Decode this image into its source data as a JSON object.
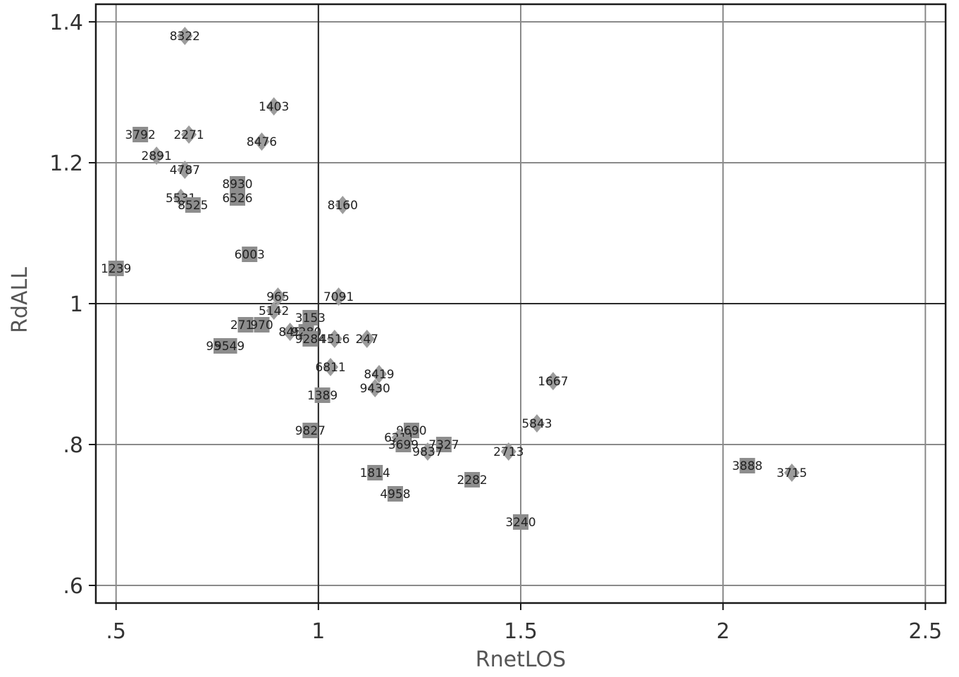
{
  "chart_data": {
    "type": "scatter",
    "xlabel": "RnetLOS",
    "ylabel": "RdALL",
    "xlim": [
      0.45,
      2.55
    ],
    "ylim": [
      0.575,
      1.425
    ],
    "xticks": [
      0.5,
      1,
      1.5,
      2,
      2.5
    ],
    "xtick_labels": [
      ".5",
      "1",
      "1.5",
      "2",
      "2.5"
    ],
    "yticks": [
      0.6,
      0.8,
      1.0,
      1.2,
      1.4
    ],
    "ytick_labels": [
      ".6",
      ".8",
      "1",
      "1.2",
      "1.4"
    ],
    "reference_lines": {
      "x": 1,
      "y": 1
    },
    "grid": true,
    "points": [
      {
        "label": "8322",
        "x": 0.67,
        "y": 1.38,
        "marker": "diamond"
      },
      {
        "label": "1403",
        "x": 0.89,
        "y": 1.28,
        "marker": "diamond"
      },
      {
        "label": "3792",
        "x": 0.56,
        "y": 1.24,
        "marker": "square"
      },
      {
        "label": "2271",
        "x": 0.68,
        "y": 1.24,
        "marker": "diamond"
      },
      {
        "label": "8476",
        "x": 0.86,
        "y": 1.23,
        "marker": "diamond"
      },
      {
        "label": "2891",
        "x": 0.6,
        "y": 1.21,
        "marker": "diamond"
      },
      {
        "label": "4787",
        "x": 0.67,
        "y": 1.19,
        "marker": "diamond"
      },
      {
        "label": "8930",
        "x": 0.8,
        "y": 1.17,
        "marker": "square"
      },
      {
        "label": "6526",
        "x": 0.8,
        "y": 1.15,
        "marker": "square"
      },
      {
        "label": "5531",
        "x": 0.66,
        "y": 1.15,
        "marker": "diamond"
      },
      {
        "label": "8525",
        "x": 0.69,
        "y": 1.14,
        "marker": "square"
      },
      {
        "label": "8160",
        "x": 1.06,
        "y": 1.14,
        "marker": "diamond"
      },
      {
        "label": "6003",
        "x": 0.83,
        "y": 1.07,
        "marker": "square"
      },
      {
        "label": "1239",
        "x": 0.5,
        "y": 1.05,
        "marker": "square"
      },
      {
        "label": "965",
        "x": 0.9,
        "y": 1.01,
        "marker": "diamond"
      },
      {
        "label": "7091",
        "x": 1.05,
        "y": 1.01,
        "marker": "diamond"
      },
      {
        "label": "5142",
        "x": 0.89,
        "y": 0.99,
        "marker": "diamond"
      },
      {
        "label": "3153",
        "x": 0.98,
        "y": 0.98,
        "marker": "square"
      },
      {
        "label": "2712",
        "x": 0.82,
        "y": 0.97,
        "marker": "square"
      },
      {
        "label": "970",
        "x": 0.86,
        "y": 0.97,
        "marker": "square"
      },
      {
        "label": "845",
        "x": 0.93,
        "y": 0.96,
        "marker": "diamond"
      },
      {
        "label": "9280",
        "x": 0.97,
        "y": 0.96,
        "marker": "square"
      },
      {
        "label": "9284",
        "x": 0.98,
        "y": 0.95,
        "marker": "square"
      },
      {
        "label": "4516",
        "x": 1.04,
        "y": 0.95,
        "marker": "diamond"
      },
      {
        "label": "247",
        "x": 1.12,
        "y": 0.95,
        "marker": "diamond"
      },
      {
        "label": "9542",
        "x": 0.76,
        "y": 0.94,
        "marker": "square"
      },
      {
        "label": "9549",
        "x": 0.78,
        "y": 0.94,
        "marker": "square"
      },
      {
        "label": "6811",
        "x": 1.03,
        "y": 0.91,
        "marker": "diamond"
      },
      {
        "label": "8419",
        "x": 1.15,
        "y": 0.9,
        "marker": "diamond"
      },
      {
        "label": "1667",
        "x": 1.58,
        "y": 0.89,
        "marker": "diamond"
      },
      {
        "label": "9430",
        "x": 1.14,
        "y": 0.88,
        "marker": "diamond"
      },
      {
        "label": "1389",
        "x": 1.01,
        "y": 0.87,
        "marker": "square"
      },
      {
        "label": "5843",
        "x": 1.54,
        "y": 0.83,
        "marker": "diamond"
      },
      {
        "label": "9827",
        "x": 0.98,
        "y": 0.82,
        "marker": "square"
      },
      {
        "label": "9690",
        "x": 1.23,
        "y": 0.82,
        "marker": "square"
      },
      {
        "label": "6211",
        "x": 1.2,
        "y": 0.81,
        "marker": "diamond"
      },
      {
        "label": "3699",
        "x": 1.21,
        "y": 0.8,
        "marker": "square"
      },
      {
        "label": "7327",
        "x": 1.31,
        "y": 0.8,
        "marker": "square"
      },
      {
        "label": "9837",
        "x": 1.27,
        "y": 0.79,
        "marker": "diamond"
      },
      {
        "label": "2713",
        "x": 1.47,
        "y": 0.79,
        "marker": "diamond"
      },
      {
        "label": "3888",
        "x": 2.06,
        "y": 0.77,
        "marker": "square"
      },
      {
        "label": "3715",
        "x": 2.17,
        "y": 0.76,
        "marker": "diamond"
      },
      {
        "label": "1814",
        "x": 1.14,
        "y": 0.76,
        "marker": "square"
      },
      {
        "label": "2282",
        "x": 1.38,
        "y": 0.75,
        "marker": "square"
      },
      {
        "label": "4958",
        "x": 1.19,
        "y": 0.73,
        "marker": "square"
      },
      {
        "label": "3240",
        "x": 1.5,
        "y": 0.69,
        "marker": "square"
      }
    ]
  }
}
